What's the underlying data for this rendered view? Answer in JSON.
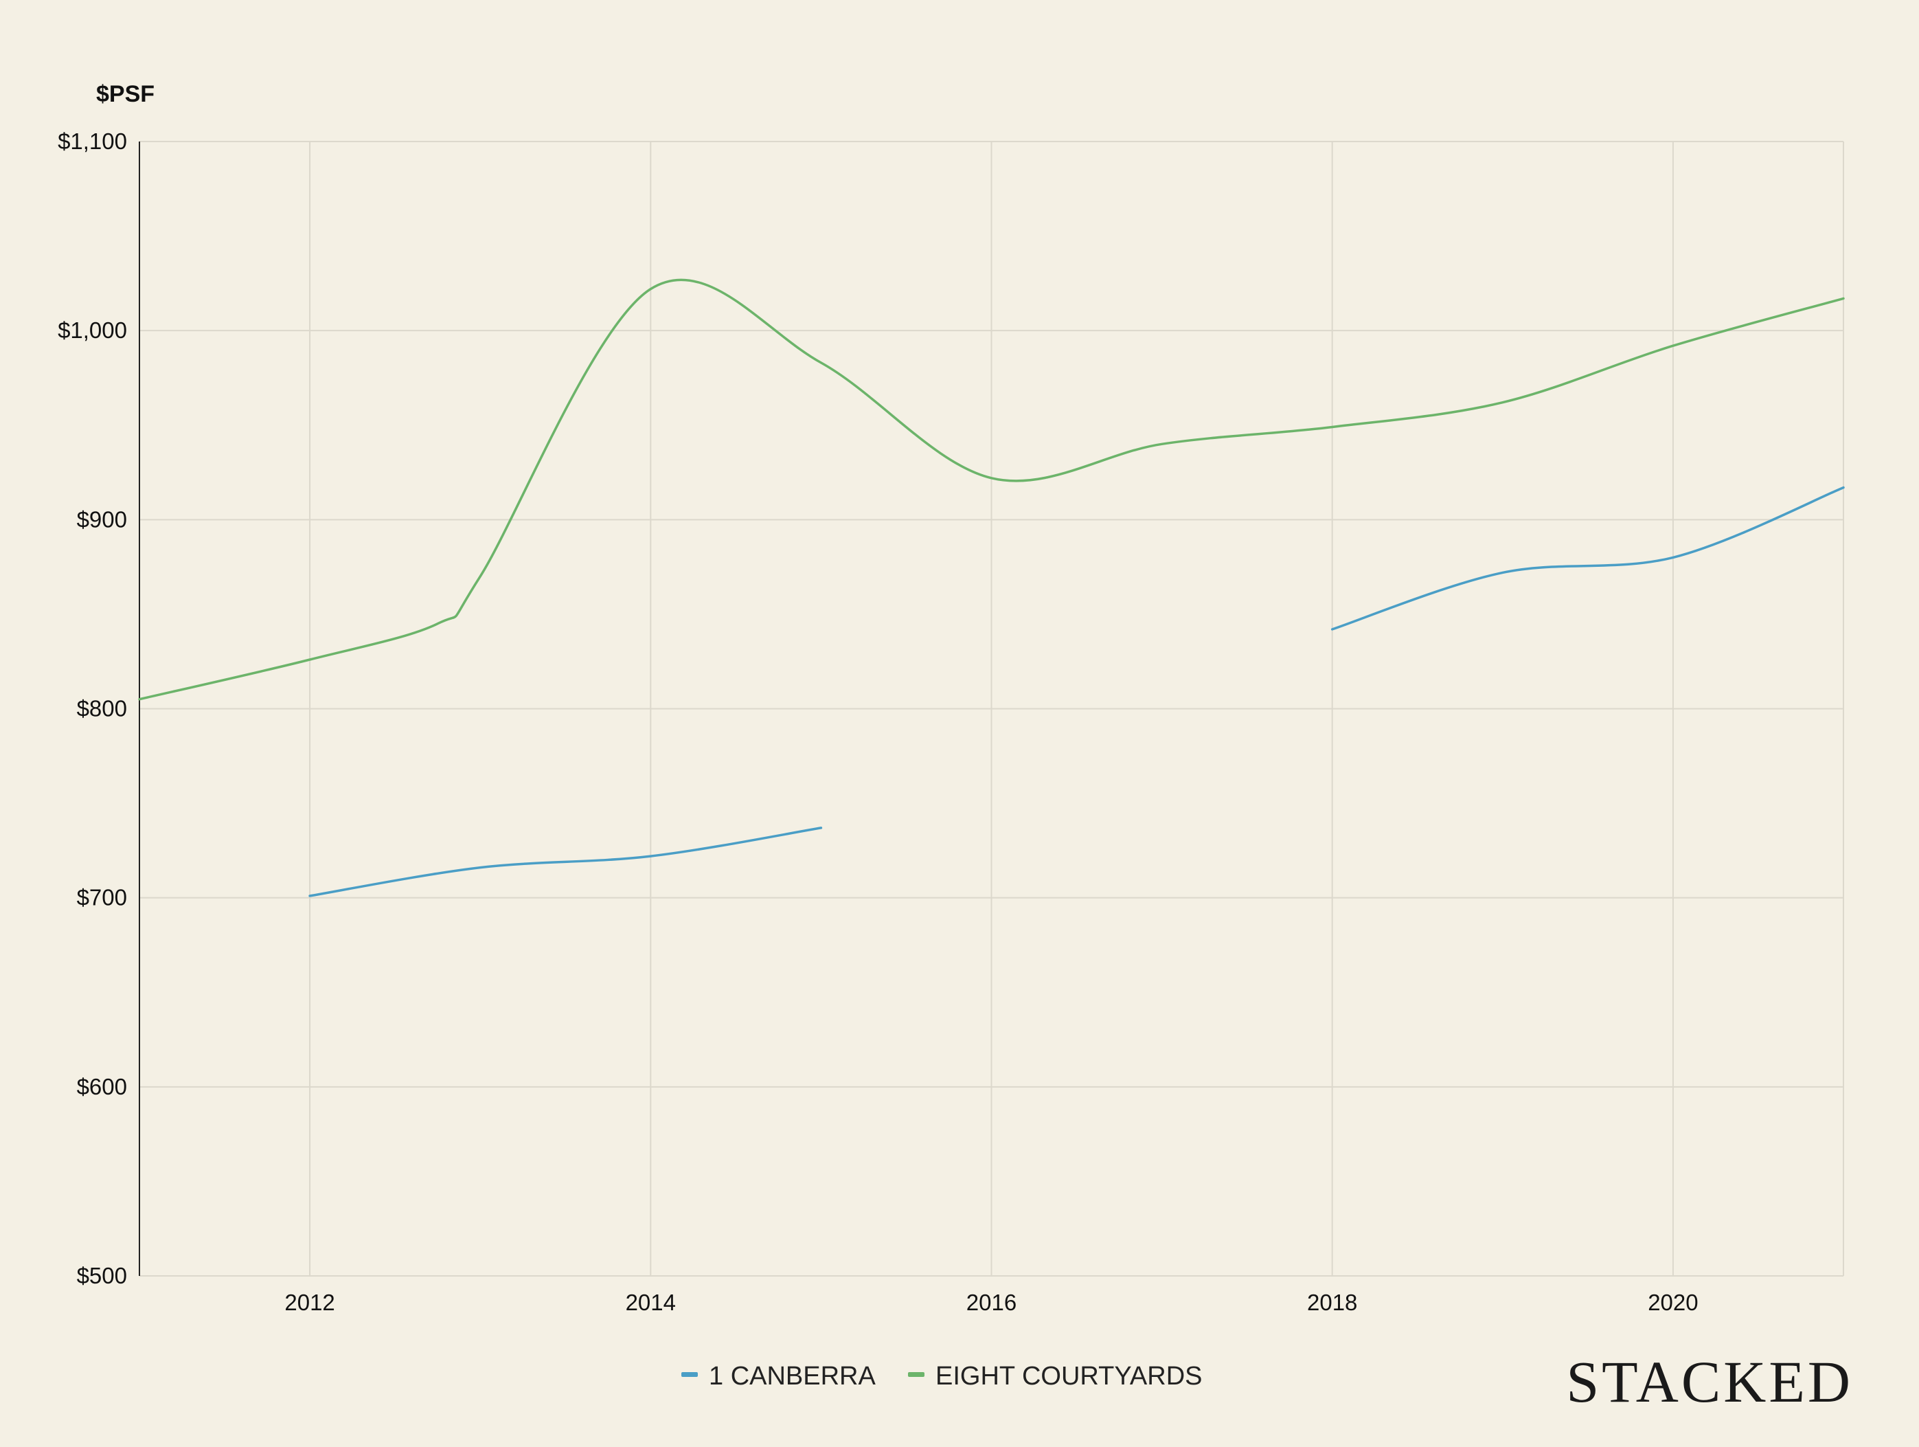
{
  "chart_data": {
    "type": "line",
    "title": "",
    "xlabel": "",
    "ylabel": "$PSF",
    "xlim": [
      2011,
      2021
    ],
    "ylim": [
      500,
      1100
    ],
    "yticks": [
      500,
      600,
      700,
      800,
      900,
      1000,
      1100
    ],
    "ytick_labels": [
      "$500",
      "$600",
      "$700",
      "$800",
      "$900",
      "$1,000",
      "$1,100"
    ],
    "xticks": [
      2012,
      2014,
      2016,
      2018,
      2020
    ],
    "xtick_labels": [
      "2012",
      "2014",
      "2016",
      "2018",
      "2020"
    ],
    "grid": true,
    "legend_position": "bottom-center",
    "series": [
      {
        "name": "1 CANBERRA",
        "color": "#4a9ec6",
        "segments": [
          {
            "x": [
              2012,
              2013,
              2014,
              2015
            ],
            "y": [
              701,
              716,
              722,
              737
            ]
          },
          {
            "x": [
              2018,
              2019,
              2020,
              2021
            ],
            "y": [
              842,
              872,
              880,
              917
            ]
          }
        ]
      },
      {
        "name": "EIGHT COURTYARDS",
        "color": "#6cb46a",
        "segments": [
          {
            "x": [
              2011,
              2012,
              2012.75,
              2013,
              2014,
              2015,
              2016,
              2017,
              2018,
              2019,
              2020,
              2021
            ],
            "y": [
              805,
              826,
              845,
              870,
              1022,
              983,
              922,
              940,
              949,
              962,
              992,
              1017
            ]
          }
        ]
      }
    ]
  },
  "brand": {
    "text": "STACKED"
  }
}
